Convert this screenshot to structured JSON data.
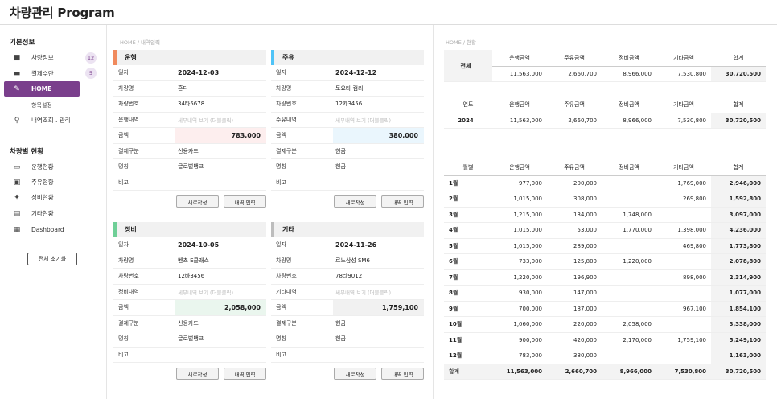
{
  "app": {
    "title": "차량관리 Program"
  },
  "sidebar": {
    "section1": "기본정보",
    "items": [
      {
        "label": "차량정보",
        "badge": "12",
        "icon": "bus-icon"
      },
      {
        "label": "결제수단",
        "badge": "5",
        "icon": "wallet-icon"
      },
      {
        "label": "HOME",
        "icon": "edit-icon"
      }
    ],
    "sub_item": "항목설정",
    "search_item": "내역조회 . 관리",
    "section2": "차량별 현황",
    "status_items": [
      {
        "label": "운행현황",
        "icon": "car-icon"
      },
      {
        "label": "주유현황",
        "icon": "fuel-icon"
      },
      {
        "label": "정비현황",
        "icon": "wrench-icon"
      },
      {
        "label": "기타현황",
        "icon": "clipboard-icon"
      },
      {
        "label": "Dashboard",
        "icon": "dashboard-icon"
      }
    ],
    "reset_label": "전체 초기화"
  },
  "left_breadcrumb": "HOME / 내역입력",
  "right_breadcrumb": "HOME / 현황",
  "buttons": {
    "new": "새로작성",
    "submit": "내역 입력"
  },
  "cards": [
    {
      "title": "운행",
      "color": "#f08a5d",
      "amount_bg": "#fdeeee",
      "rows": [
        {
          "label": "일자",
          "value": "2024-12-03",
          "kind": "b"
        },
        {
          "label": "차량명",
          "value": "혼다",
          "kind": ""
        },
        {
          "label": "차량번호",
          "value": "34타5678",
          "kind": ""
        },
        {
          "label": "운행내역",
          "value": "세부내역 보기 (더블클릭)",
          "kind": "ph"
        },
        {
          "label": "금액",
          "value": "783,000",
          "kind": "amt"
        },
        {
          "label": "결제구분",
          "value": "신용카드",
          "kind": ""
        },
        {
          "label": "명칭",
          "value": "글로벌뱅크",
          "kind": ""
        },
        {
          "label": "비고",
          "value": "",
          "kind": ""
        }
      ]
    },
    {
      "title": "주유",
      "color": "#4fc3f7",
      "amount_bg": "#eaf6fd",
      "rows": [
        {
          "label": "일자",
          "value": "2024-12-12",
          "kind": "b"
        },
        {
          "label": "차량명",
          "value": "토요타 캠리",
          "kind": ""
        },
        {
          "label": "차량번호",
          "value": "12카3456",
          "kind": ""
        },
        {
          "label": "주유내역",
          "value": "세부내역 보기 (더블클릭)",
          "kind": "ph"
        },
        {
          "label": "금액",
          "value": "380,000",
          "kind": "amt"
        },
        {
          "label": "결제구분",
          "value": "현금",
          "kind": ""
        },
        {
          "label": "명칭",
          "value": "현금",
          "kind": ""
        },
        {
          "label": "비고",
          "value": "",
          "kind": ""
        }
      ]
    },
    {
      "title": "정비",
      "color": "#6fcf97",
      "amount_bg": "#eaf6ee",
      "rows": [
        {
          "label": "일자",
          "value": "2024-10-05",
          "kind": "b"
        },
        {
          "label": "차량명",
          "value": "벤츠 E클래스",
          "kind": ""
        },
        {
          "label": "차량번호",
          "value": "12바3456",
          "kind": ""
        },
        {
          "label": "정비내역",
          "value": "세부내역 보기 (더블클릭)",
          "kind": "ph"
        },
        {
          "label": "금액",
          "value": "2,058,000",
          "kind": "amt"
        },
        {
          "label": "결제구분",
          "value": "신용카드",
          "kind": ""
        },
        {
          "label": "명칭",
          "value": "글로벌뱅크",
          "kind": ""
        },
        {
          "label": "비고",
          "value": "",
          "kind": ""
        }
      ]
    },
    {
      "title": "기타",
      "color": "#bdbdbd",
      "amount_bg": "#f1f1f1",
      "rows": [
        {
          "label": "일자",
          "value": "2024-11-26",
          "kind": "b"
        },
        {
          "label": "차량명",
          "value": "르노삼성 SM6",
          "kind": ""
        },
        {
          "label": "차량번호",
          "value": "78라9012",
          "kind": ""
        },
        {
          "label": "기타내역",
          "value": "세부내역 보기 (더블클릭)",
          "kind": "ph"
        },
        {
          "label": "금액",
          "value": "1,759,100",
          "kind": "amt"
        },
        {
          "label": "결제구분",
          "value": "현금",
          "kind": ""
        },
        {
          "label": "명칭",
          "value": "현금",
          "kind": ""
        },
        {
          "label": "비고",
          "value": "",
          "kind": ""
        }
      ]
    }
  ],
  "total_table": {
    "headers": [
      "전체",
      "운행금액",
      "주유금액",
      "정비금액",
      "기타금액",
      "합계"
    ],
    "values": [
      "11,563,000",
      "2,660,700",
      "8,966,000",
      "7,530,800",
      "30,720,500"
    ]
  },
  "year_table": {
    "headers": [
      "연도",
      "운행금액",
      "주유금액",
      "정비금액",
      "기타금액",
      "합계"
    ],
    "rows": [
      [
        "2024",
        "11,563,000",
        "2,660,700",
        "8,966,000",
        "7,530,800",
        "30,720,500"
      ]
    ]
  },
  "month_table": {
    "headers": [
      "월별",
      "운행금액",
      "주유금액",
      "정비금액",
      "기타금액",
      "합계"
    ],
    "rows": [
      [
        "1월",
        "977,000",
        "200,000",
        "",
        "1,769,000",
        "2,946,000"
      ],
      [
        "2월",
        "1,015,000",
        "308,000",
        "",
        "269,800",
        "1,592,800"
      ],
      [
        "3월",
        "1,215,000",
        "134,000",
        "1,748,000",
        "",
        "3,097,000"
      ],
      [
        "4월",
        "1,015,000",
        "53,000",
        "1,770,000",
        "1,398,000",
        "4,236,000"
      ],
      [
        "5월",
        "1,015,000",
        "289,000",
        "",
        "469,800",
        "1,773,800"
      ],
      [
        "6월",
        "733,000",
        "125,800",
        "1,220,000",
        "",
        "2,078,800"
      ],
      [
        "7월",
        "1,220,000",
        "196,900",
        "",
        "898,000",
        "2,314,900"
      ],
      [
        "8월",
        "930,000",
        "147,000",
        "",
        "",
        "1,077,000"
      ],
      [
        "9월",
        "700,000",
        "187,000",
        "",
        "967,100",
        "1,854,100"
      ],
      [
        "10월",
        "1,060,000",
        "220,000",
        "2,058,000",
        "",
        "3,338,000"
      ],
      [
        "11월",
        "900,000",
        "420,000",
        "2,170,000",
        "1,759,100",
        "5,249,100"
      ],
      [
        "12월",
        "783,000",
        "380,000",
        "",
        "",
        "1,163,000"
      ]
    ],
    "sum": [
      "합계",
      "11,563,000",
      "2,660,700",
      "8,966,000",
      "7,530,800",
      "30,720,500"
    ]
  }
}
